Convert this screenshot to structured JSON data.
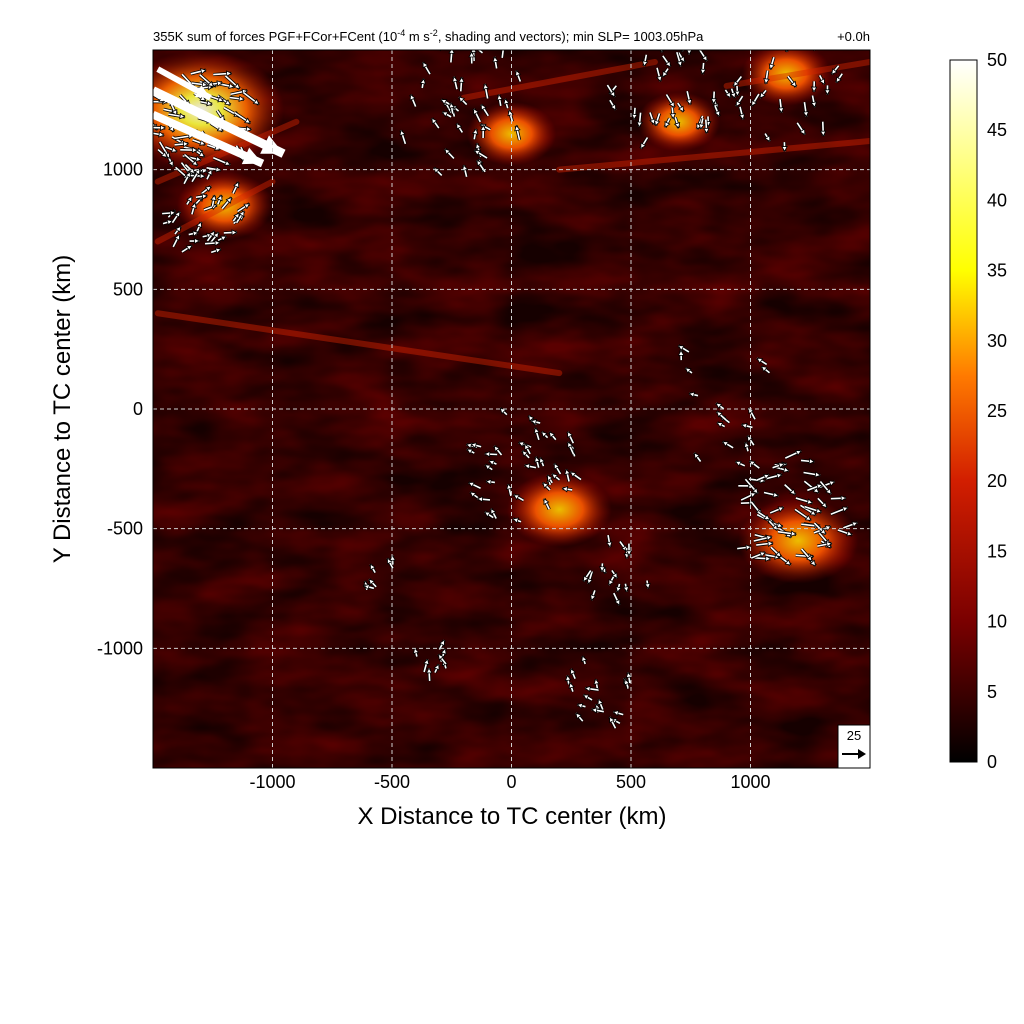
{
  "chart_data": {
    "type": "heatmap",
    "title": "355K sum of forces PGF+FCor+FCent (10",
    "title_exponent": "-4",
    "title_units_tail": " m s",
    "title_units_exponent": "-2",
    "title_rest": ", shading and vectors); min SLP= 1003.05hPa",
    "time_label": "+0.0h",
    "xlabel": "X Distance to TC center (km)",
    "ylabel": "Y Distance to TC center (km)",
    "xlim": [
      -1500,
      1500
    ],
    "ylim": [
      -1500,
      1500
    ],
    "x_ticks": [
      -1000,
      -500,
      0,
      500,
      1000
    ],
    "y_ticks": [
      1000,
      500,
      0,
      -500,
      -1000
    ],
    "grid": true,
    "colorbar": {
      "min": 0,
      "max": 50,
      "ticks": [
        50,
        45,
        40,
        35,
        30,
        25,
        20,
        15,
        10,
        5,
        0
      ],
      "colormap": "hot",
      "colors": [
        "#000000",
        "#7a0000",
        "#c81e00",
        "#ff7a00",
        "#ffff00",
        "#ffffff"
      ]
    },
    "reference_vector": {
      "magnitude": "25"
    },
    "strong_regions": [
      {
        "x": -1300,
        "y": 1250,
        "value": 45,
        "description": ""
      },
      {
        "x": 1200,
        "y": -550,
        "value": 30
      },
      {
        "x": 200,
        "y": -420,
        "value": 25
      },
      {
        "x": -1200,
        "y": 850,
        "value": 22
      },
      {
        "x": 0,
        "y": 1150,
        "value": 20
      },
      {
        "x": 700,
        "y": 1200,
        "value": 18
      },
      {
        "x": 1150,
        "y": 1400,
        "value": 20
      }
    ]
  }
}
